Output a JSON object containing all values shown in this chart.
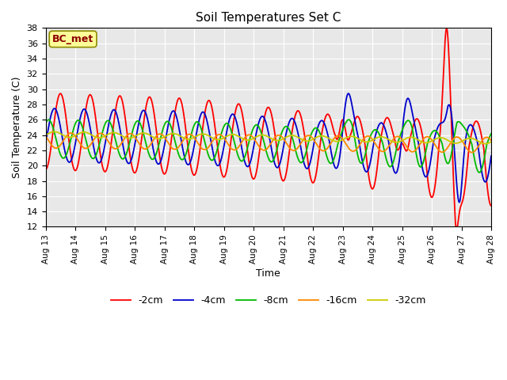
{
  "title": "Soil Temperatures Set C",
  "xlabel": "Time",
  "ylabel": "Soil Temperature (C)",
  "ylim": [
    12,
    38
  ],
  "yticks": [
    12,
    14,
    16,
    18,
    20,
    22,
    24,
    26,
    28,
    30,
    32,
    34,
    36,
    38
  ],
  "annotation": "BC_met",
  "annotation_color": "#8B0000",
  "annotation_bg": "#FFFF99",
  "annotation_edge": "#8B8B00",
  "bg_color": "#E8E8E8",
  "plot_bg": "#E8E8E8",
  "lines": {
    "-2cm": {
      "color": "#FF0000",
      "lw": 1.3
    },
    "-4cm": {
      "color": "#0000CC",
      "lw": 1.3
    },
    "-8cm": {
      "color": "#00BB00",
      "lw": 1.3
    },
    "-16cm": {
      "color": "#FF8800",
      "lw": 1.3
    },
    "-32cm": {
      "color": "#CCCC00",
      "lw": 1.3
    }
  },
  "legend_order": [
    "-2cm",
    "-4cm",
    "-8cm",
    "-16cm",
    "-32cm"
  ],
  "xtick_labels": [
    "Aug 13",
    "Aug 14",
    "Aug 15",
    "Aug 16",
    "Aug 17",
    "Aug 18",
    "Aug 19",
    "Aug 20",
    "Aug 21",
    "Aug 22",
    "Aug 23",
    "Aug 24",
    "Aug 25",
    "Aug 26",
    "Aug 27",
    "Aug 28"
  ]
}
